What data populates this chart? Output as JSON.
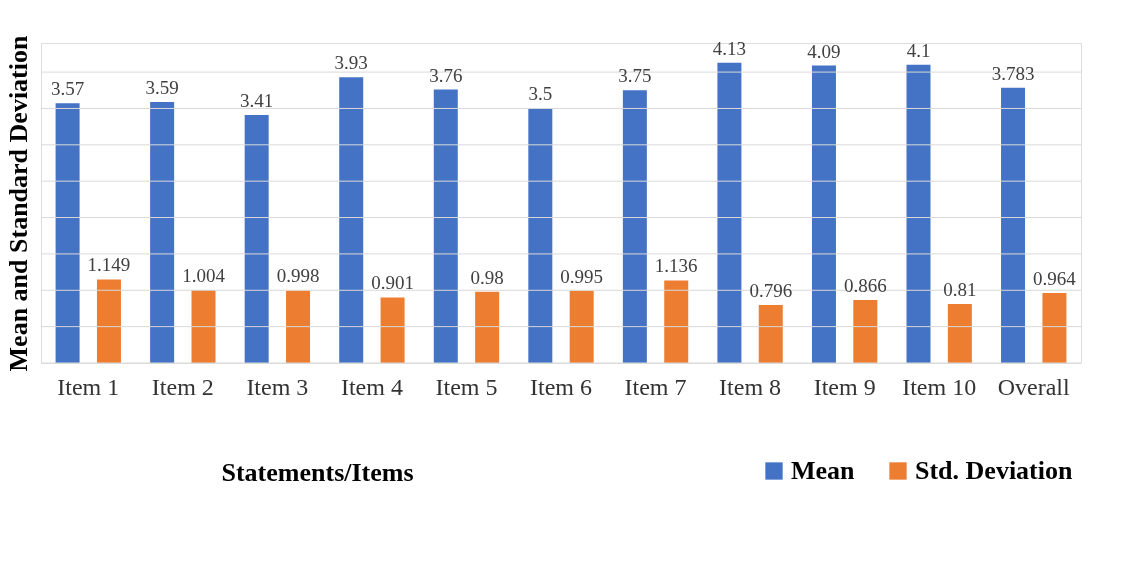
{
  "chart_data": {
    "type": "bar",
    "xlabel": "Statements/Items",
    "ylabel": "Mean and Standard Deviation",
    "categories": [
      "Item 1",
      "Item 2",
      "Item 3",
      "Item 4",
      "Item 5",
      "Item 6",
      "Item 7",
      "Item 8",
      "Item 9",
      "Item 10",
      "Overall"
    ],
    "series": [
      {
        "name": "Mean",
        "color": "#4472c4",
        "values": [
          3.57,
          3.59,
          3.41,
          3.93,
          3.76,
          3.5,
          3.75,
          4.13,
          4.09,
          4.1,
          3.783
        ]
      },
      {
        "name": "Std. Deviation",
        "color": "#ed7d31",
        "values": [
          1.149,
          1.004,
          0.998,
          0.901,
          0.98,
          0.995,
          1.136,
          0.796,
          0.866,
          0.81,
          0.964
        ]
      }
    ],
    "ylim": [
      0,
      4.4
    ],
    "yticks": [
      {
        "value": 0,
        "label": null
      },
      {
        "value": 0.5,
        "label": null
      },
      {
        "value": 1,
        "label": null
      },
      {
        "value": 1.5,
        "label": null
      },
      {
        "value": 2,
        "label": null
      },
      {
        "value": 2.5,
        "label": null
      },
      {
        "value": 3,
        "label": null
      },
      {
        "value": 3.5,
        "label": null
      },
      {
        "value": 4,
        "label": null
      }
    ],
    "tick_labels": "x",
    "grid": "y",
    "legend": "bottom right",
    "data_labels": true
  }
}
